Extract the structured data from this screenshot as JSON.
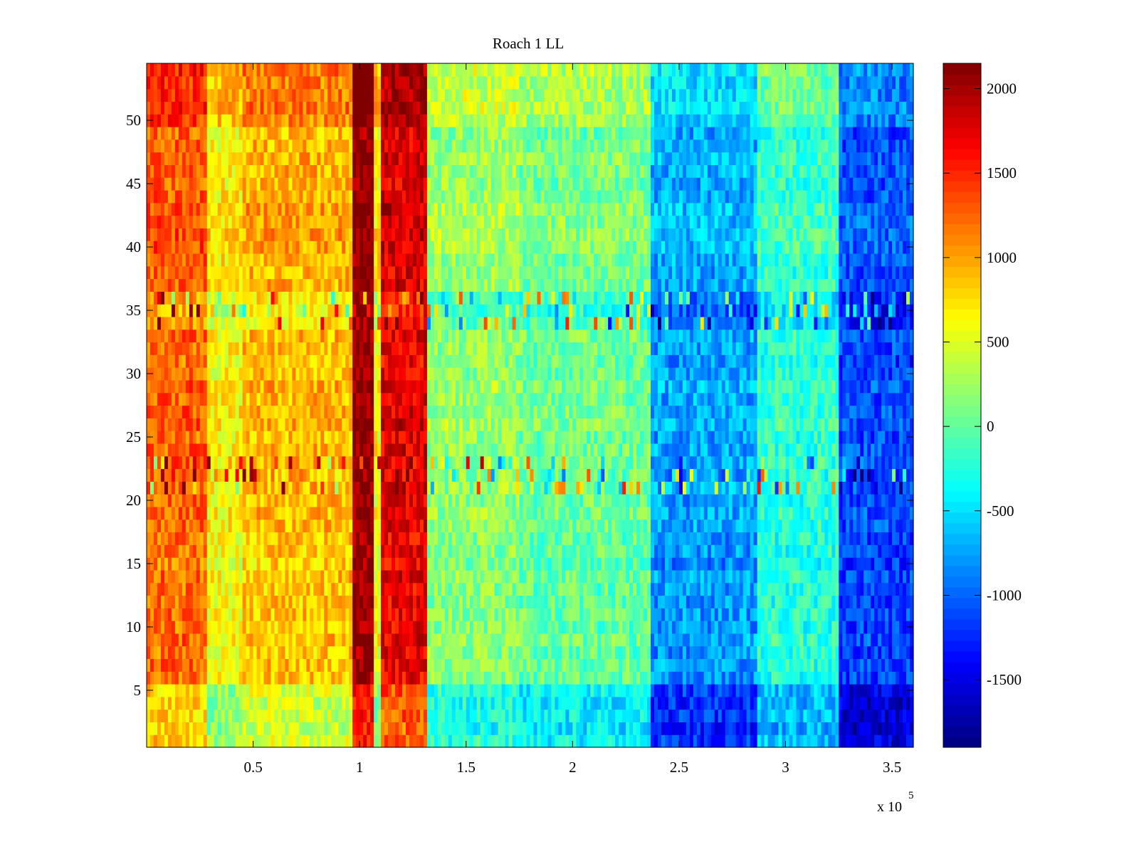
{
  "chart_data": {
    "type": "heatmap",
    "title": "Roach 1 LL",
    "xlabel": "",
    "ylabel": "",
    "x_exponent_label": "x 10",
    "x_exponent_power": "5",
    "xlim": [
      0,
      3.6
    ],
    "ylim": [
      0.5,
      54.5
    ],
    "x_ticks": [
      0.5,
      1,
      1.5,
      2,
      2.5,
      3,
      3.5
    ],
    "x_tick_labels": [
      "0.5",
      "1",
      "1.5",
      "2",
      "2.5",
      "3",
      "3.5"
    ],
    "y_ticks": [
      5,
      10,
      15,
      20,
      25,
      30,
      35,
      40,
      45,
      50
    ],
    "y_tick_labels": [
      "5",
      "10",
      "15",
      "20",
      "25",
      "30",
      "35",
      "40",
      "45",
      "50"
    ],
    "colorbar": {
      "colormap": "jet",
      "clim": [
        -1900,
        2150
      ],
      "ticks": [
        2000,
        1500,
        1000,
        500,
        0,
        -500,
        -1000,
        -1500
      ],
      "tick_labels": [
        "2000",
        "1500",
        "1000",
        "500",
        "0",
        "-500",
        "-1000",
        "-1500"
      ]
    },
    "column_bands": [
      {
        "x_start": 0,
        "x_end": 0.28,
        "value": 1250
      },
      {
        "x_start": 0.28,
        "x_end": 0.45,
        "value": 650
      },
      {
        "x_start": 0.45,
        "x_end": 0.96,
        "value": 900
      },
      {
        "x_start": 0.96,
        "x_end": 1.07,
        "value": 2080
      },
      {
        "x_start": 1.07,
        "x_end": 1.1,
        "value": 650
      },
      {
        "x_start": 1.1,
        "x_end": 1.32,
        "value": 1750
      },
      {
        "x_start": 1.32,
        "x_end": 1.75,
        "value": 200
      },
      {
        "x_start": 1.75,
        "x_end": 2.36,
        "value": 50
      },
      {
        "x_start": 2.36,
        "x_end": 2.86,
        "value": -750
      },
      {
        "x_start": 2.86,
        "x_end": 3.25,
        "value": -200
      },
      {
        "x_start": 3.25,
        "x_end": 3.6,
        "value": -1100
      }
    ],
    "row_adjustments": [
      {
        "row_start": 1,
        "row_end": 5,
        "delta": -450
      },
      {
        "row_start": 6,
        "row_end": 20,
        "delta": -50
      },
      {
        "row_start": 21,
        "row_end": 23,
        "delta": 0,
        "noisy": true
      },
      {
        "row_start": 24,
        "row_end": 33,
        "delta": 0
      },
      {
        "row_start": 34,
        "row_end": 36,
        "delta": -250,
        "noisy": true
      },
      {
        "row_start": 37,
        "row_end": 49,
        "delta": 50
      },
      {
        "row_start": 50,
        "row_end": 54,
        "delta": 250
      }
    ],
    "noise_amplitude": 300
  }
}
